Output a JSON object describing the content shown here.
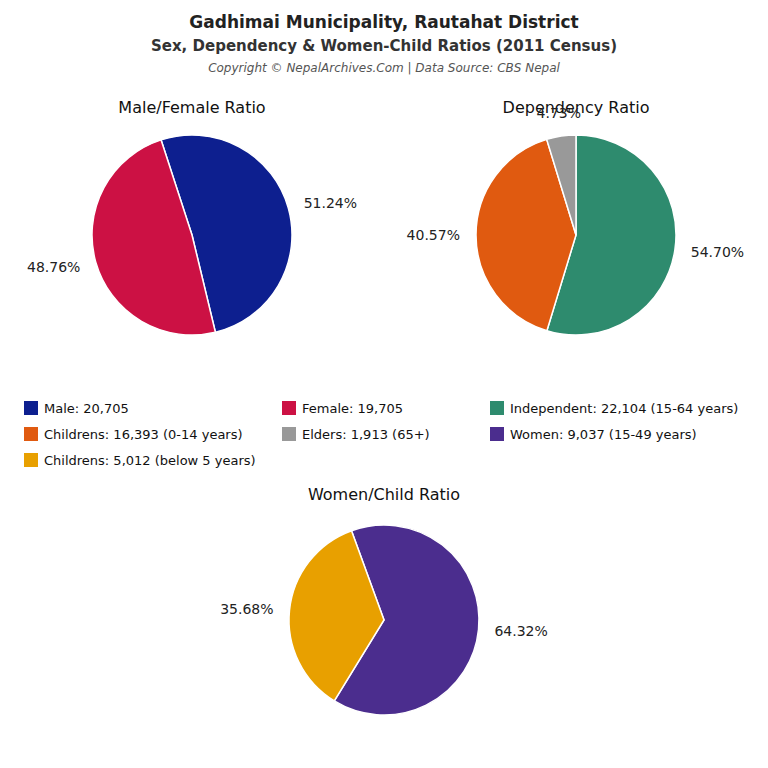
{
  "title": "Gadhimai Municipality, Rautahat District",
  "subtitle": "Sex, Dependency & Women-Child Ratios (2011 Census)",
  "annotations": [
    "Copyright © NepalArchives.Com | Data Source: CBS Nepal"
  ],
  "chart_data": [
    {
      "type": "pie",
      "title": "Male/Female Ratio",
      "categories": [
        "Male: 20,705",
        "Female: 19,705"
      ],
      "values": [
        51.24,
        48.76
      ],
      "value_labels": [
        "51.24%",
        "48.76%"
      ],
      "colors": [
        "#0d1f8f",
        "#cc1144"
      ],
      "data_labels": true
    },
    {
      "type": "pie",
      "title": "Dependency Ratio",
      "categories": [
        "Independent: 22,104 (15-64 years)",
        "Childrens: 16,393 (0-14 years)",
        "Elders: 1,913 (65+)"
      ],
      "values": [
        54.7,
        40.57,
        4.73
      ],
      "value_labels": [
        "54.70%",
        "40.57%",
        "4.73%"
      ],
      "colors": [
        "#2e8b6e",
        "#e05a10",
        "#999999"
      ],
      "data_labels": true
    },
    {
      "type": "pie",
      "title": "Women/Child Ratio",
      "categories": [
        "Women: 9,037 (15-49 years)",
        "Childrens: 5,012 (below 5 years)"
      ],
      "values": [
        64.32,
        35.68
      ],
      "value_labels": [
        "64.32%",
        "35.68%"
      ],
      "colors": [
        "#4b2d8e",
        "#e8a000"
      ],
      "data_labels": true
    }
  ]
}
